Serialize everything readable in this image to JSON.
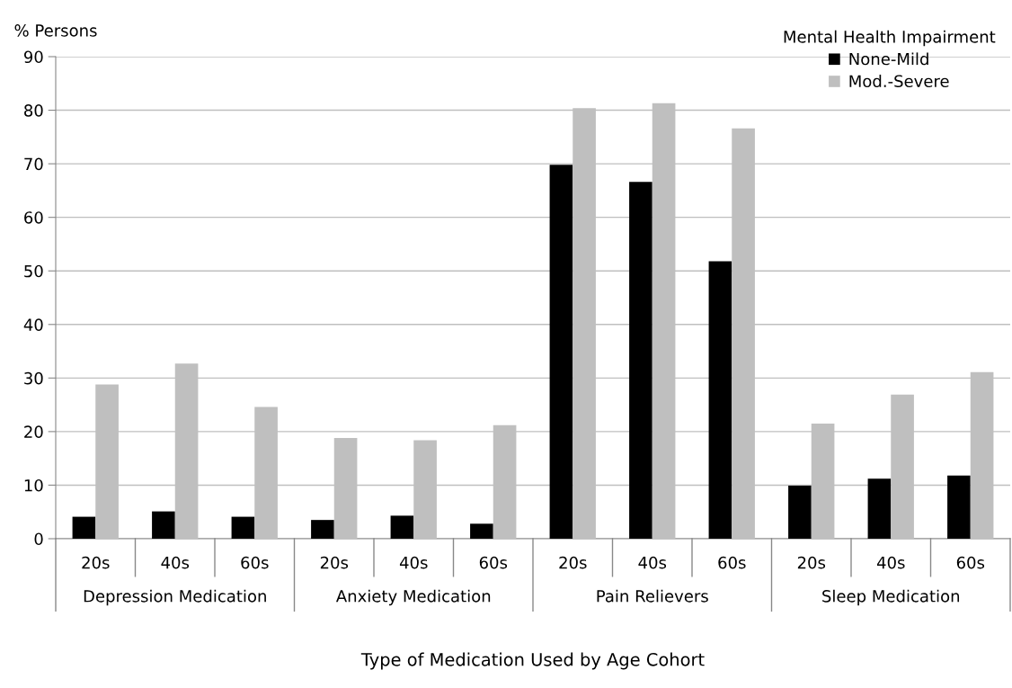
{
  "chart_data": {
    "type": "bar",
    "ylabel": "% Persons",
    "xlabel": "Type of Medication Used by Age Cohort",
    "legend_title": "Mental Health Impairment",
    "categories": [
      "20s",
      "40s",
      "60s",
      "20s",
      "40s",
      "60s",
      "20s",
      "40s",
      "60s",
      "20s",
      "40s",
      "60s"
    ],
    "annotations": [
      "Depression Medication",
      "Anxiety Medication",
      "Pain Relievers",
      "Sleep Medication"
    ],
    "series": [
      {
        "name": "None-Mild",
        "color": "#000000",
        "values": [
          4.1,
          5.1,
          4.1,
          3.5,
          4.3,
          2.8,
          69.8,
          66.6,
          51.8,
          9.9,
          11.2,
          11.8
        ]
      },
      {
        "name": "Mod.-Severe",
        "color": "#bfbfbf",
        "values": [
          28.8,
          32.7,
          24.6,
          18.8,
          18.4,
          21.2,
          80.4,
          81.3,
          76.6,
          21.5,
          26.9,
          31.1
        ]
      }
    ],
    "ylim": [
      0,
      90
    ],
    "yticks": [
      0,
      10,
      20,
      30,
      40,
      50,
      60,
      70,
      80,
      90
    ],
    "grid": "y",
    "legend": "top right"
  }
}
